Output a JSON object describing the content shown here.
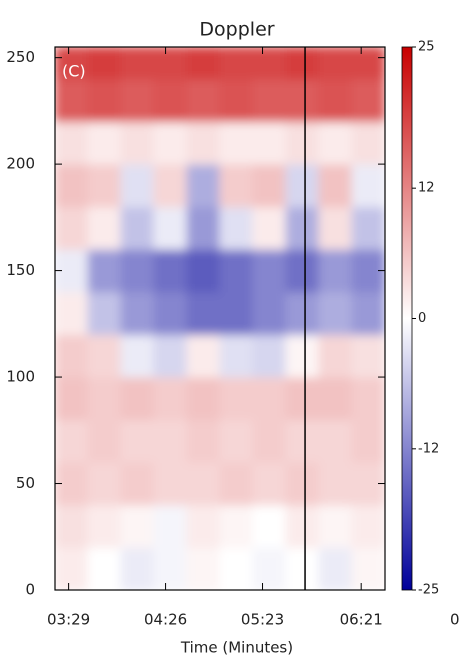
{
  "chart_data": {
    "type": "heatmap",
    "title": "Doppler",
    "panel_label": "(C)",
    "x_label": "Time (Minutes)",
    "xlim": [
      201,
      395
    ],
    "xticks": [
      {
        "value": 209,
        "label": "03:29"
      },
      {
        "value": 266,
        "label": "04:26"
      },
      {
        "value": 323,
        "label": "05:23"
      },
      {
        "value": 381,
        "label": "06:21"
      }
    ],
    "ylim": [
      0,
      255
    ],
    "yticks": [
      0,
      50,
      100,
      150,
      200,
      250
    ],
    "zlim": [
      -25,
      25
    ],
    "zticks": [
      25,
      12,
      0,
      -12,
      -25
    ],
    "colors": [
      "#00009a",
      "#ffffff",
      "#c80000"
    ],
    "marker_x": 348,
    "neighbor_label": "0.",
    "x_bins": [
      201,
      220.4,
      239.8,
      259.2,
      278.6,
      298,
      317.4,
      336.8,
      356.2,
      375.6,
      395
    ],
    "y_bins": [
      0,
      20,
      40,
      60,
      80,
      100,
      120,
      140,
      160,
      180,
      200,
      220,
      240,
      255
    ],
    "z": [
      [
        2,
        0,
        -2,
        -1,
        1,
        0,
        -1,
        0,
        -2,
        1
      ],
      [
        3,
        2,
        1,
        -1,
        2,
        1,
        0,
        2,
        1,
        2
      ],
      [
        5,
        4,
        5,
        4,
        4,
        5,
        4,
        5,
        4,
        4
      ],
      [
        4,
        5,
        4,
        4,
        5,
        4,
        5,
        4,
        4,
        5
      ],
      [
        6,
        5,
        6,
        5,
        6,
        5,
        5,
        6,
        6,
        5
      ],
      [
        5,
        4,
        -2,
        -4,
        2,
        -3,
        -4,
        1,
        4,
        3
      ],
      [
        2,
        -6,
        -10,
        -12,
        -14,
        -14,
        -12,
        -10,
        -8,
        -10
      ],
      [
        -2,
        -10,
        -12,
        -14,
        -16,
        -14,
        -12,
        -14,
        -10,
        -12
      ],
      [
        4,
        2,
        -6,
        -2,
        -10,
        -3,
        2,
        -8,
        3,
        -6
      ],
      [
        6,
        5,
        -3,
        4,
        -8,
        5,
        6,
        -4,
        6,
        -2
      ],
      [
        3,
        2,
        3,
        2,
        3,
        2,
        2,
        3,
        2,
        3
      ],
      [
        16,
        17,
        16,
        17,
        16,
        17,
        16,
        16,
        17,
        16
      ],
      [
        18,
        19,
        18,
        18,
        19,
        18,
        18,
        19,
        18,
        18
      ]
    ]
  }
}
